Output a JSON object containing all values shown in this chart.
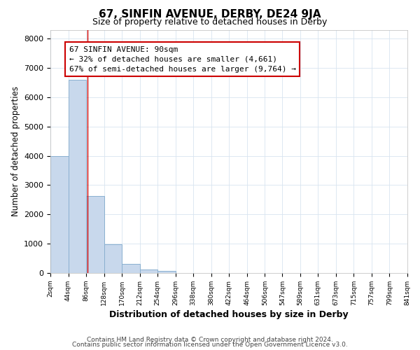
{
  "title": "67, SINFIN AVENUE, DERBY, DE24 9JA",
  "subtitle": "Size of property relative to detached houses in Derby",
  "xlabel": "Distribution of detached houses by size in Derby",
  "ylabel": "Number of detached properties",
  "bar_values": [
    4000,
    6600,
    2630,
    970,
    320,
    130,
    75,
    0,
    0,
    0,
    0,
    0,
    0,
    0,
    0,
    0,
    0,
    0,
    0,
    0
  ],
  "bar_edges": [
    2,
    44,
    86,
    128,
    170,
    212,
    254,
    296,
    338,
    380,
    422,
    464,
    506,
    547,
    589,
    631,
    673,
    715,
    757,
    799,
    841
  ],
  "tick_labels": [
    "2sqm",
    "44sqm",
    "86sqm",
    "128sqm",
    "170sqm",
    "212sqm",
    "254sqm",
    "296sqm",
    "338sqm",
    "380sqm",
    "422sqm",
    "464sqm",
    "506sqm",
    "547sqm",
    "589sqm",
    "631sqm",
    "673sqm",
    "715sqm",
    "757sqm",
    "799sqm",
    "841sqm"
  ],
  "bar_color": "#c8d8ec",
  "bar_edgecolor": "#8ab0d0",
  "property_line_x": 90,
  "property_line_color": "#cc0000",
  "annotation_text": "67 SINFIN AVENUE: 90sqm\n← 32% of detached houses are smaller (4,661)\n67% of semi-detached houses are larger (9,764) →",
  "annotation_box_edgecolor": "#cc0000",
  "ylim": [
    0,
    8300
  ],
  "grid_color": "#d8e4f0",
  "background_color": "#ffffff",
  "footer1": "Contains HM Land Registry data © Crown copyright and database right 2024.",
  "footer2": "Contains public sector information licensed under the Open Government Licence v3.0."
}
